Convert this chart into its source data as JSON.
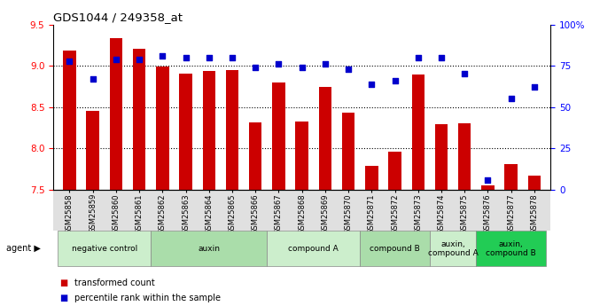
{
  "title": "GDS1044 / 249358_at",
  "samples": [
    "GSM25858",
    "GSM25859",
    "GSM25860",
    "GSM25861",
    "GSM25862",
    "GSM25863",
    "GSM25864",
    "GSM25865",
    "GSM25866",
    "GSM25867",
    "GSM25868",
    "GSM25869",
    "GSM25870",
    "GSM25871",
    "GSM25872",
    "GSM25873",
    "GSM25874",
    "GSM25875",
    "GSM25876",
    "GSM25877",
    "GSM25878"
  ],
  "transformed_count": [
    9.18,
    8.45,
    9.33,
    9.21,
    8.99,
    8.91,
    8.94,
    8.95,
    8.31,
    8.8,
    8.33,
    8.74,
    8.43,
    7.79,
    7.96,
    8.89,
    8.29,
    8.3,
    7.55,
    7.81,
    7.67
  ],
  "percentile_rank": [
    78,
    67,
    79,
    79,
    81,
    80,
    80,
    80,
    74,
    76,
    74,
    76,
    73,
    64,
    66,
    80,
    80,
    70,
    6,
    55,
    62
  ],
  "ylim_left": [
    7.5,
    9.5
  ],
  "ylim_right": [
    0,
    100
  ],
  "yticks_left": [
    7.5,
    8.0,
    8.5,
    9.0,
    9.5
  ],
  "yticks_right": [
    0,
    25,
    50,
    75,
    100
  ],
  "ytick_labels_right": [
    "0",
    "25",
    "50",
    "75",
    "100%"
  ],
  "hlines": [
    9.0,
    8.5,
    8.0
  ],
  "bar_color": "#cc0000",
  "scatter_color": "#0000cc",
  "scatter_size": 15,
  "agent_groups": [
    {
      "label": "negative control",
      "start": 0,
      "end": 3,
      "color": "#cceecc"
    },
    {
      "label": "auxin",
      "start": 4,
      "end": 8,
      "color": "#aaddaa"
    },
    {
      "label": "compound A",
      "start": 9,
      "end": 12,
      "color": "#cceecc"
    },
    {
      "label": "compound B",
      "start": 13,
      "end": 15,
      "color": "#aaddaa"
    },
    {
      "label": "auxin,\ncompound A",
      "start": 16,
      "end": 17,
      "color": "#cceecc"
    },
    {
      "label": "auxin,\ncompound B",
      "start": 18,
      "end": 20,
      "color": "#22cc55"
    }
  ],
  "legend_bar_label": "transformed count",
  "legend_scatter_label": "percentile rank within the sample",
  "bar_width": 0.55,
  "tick_bg_color": "#e0e0e0",
  "agent_label": "agent"
}
